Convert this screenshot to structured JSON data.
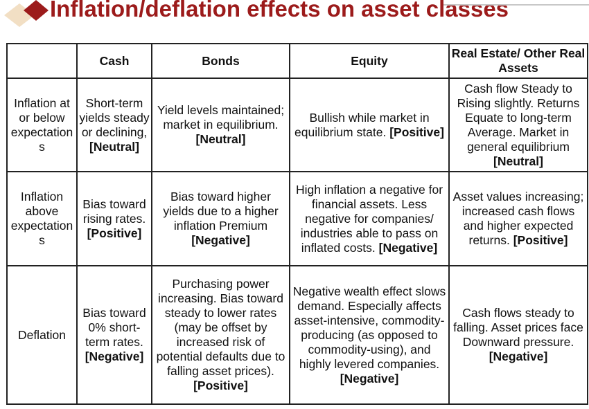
{
  "header": {
    "title": "Inflation/deflation effects on asset classes"
  },
  "table": {
    "columns": [
      "Cash",
      "Bonds",
      "Equity",
      "Real Estate/ Other Real Assets"
    ],
    "rows": [
      {
        "label": "Inflation at or below expectations",
        "cells": [
          {
            "text": "Short-term yields steady or declining,",
            "tag": "[Neutral]"
          },
          {
            "text": "Yield levels maintained; market in equilibrium.",
            "tag": "[Neutral]"
          },
          {
            "text": "Bullish while market in equilibrium state.",
            "tag": "[Positive]"
          },
          {
            "text": "Cash flow Steady to Rising slightly. Returns Equate to long-term Average. Market in general equilibrium",
            "tag": "[Neutral]"
          }
        ]
      },
      {
        "label": "Inflation above expectations",
        "cells": [
          {
            "text": "Bias toward rising rates.",
            "tag": "[Positive]"
          },
          {
            "text": "Bias toward higher yields due to a higher inflation Premium",
            "tag": "[Negative]"
          },
          {
            "text": "High inflation a negative for financial assets. Less negative for companies/ industries able to pass on inflated costs.",
            "tag": "[Negative]"
          },
          {
            "text": "Asset values increasing; increased cash flows and higher expected returns.",
            "tag": "[Positive]"
          }
        ]
      },
      {
        "label": "Deflation",
        "cells": [
          {
            "text": "Bias toward 0% short-term rates.",
            "tag": "[Negative]"
          },
          {
            "text": "Purchasing power increasing. Bias toward steady to lower rates (may be offset by increased risk of potential defaults due to falling asset prices).",
            "tag": "[Positive]"
          },
          {
            "text": "Negative wealth effect slows demand. Especially affects asset-intensive, commodity-producing (as opposed to commodity-using), and highly levered companies.",
            "tag": "[Negative]"
          },
          {
            "text": "Cash flows steady to falling. Asset prices face Downward pressure.",
            "tag": "[Negative]"
          }
        ]
      }
    ]
  }
}
